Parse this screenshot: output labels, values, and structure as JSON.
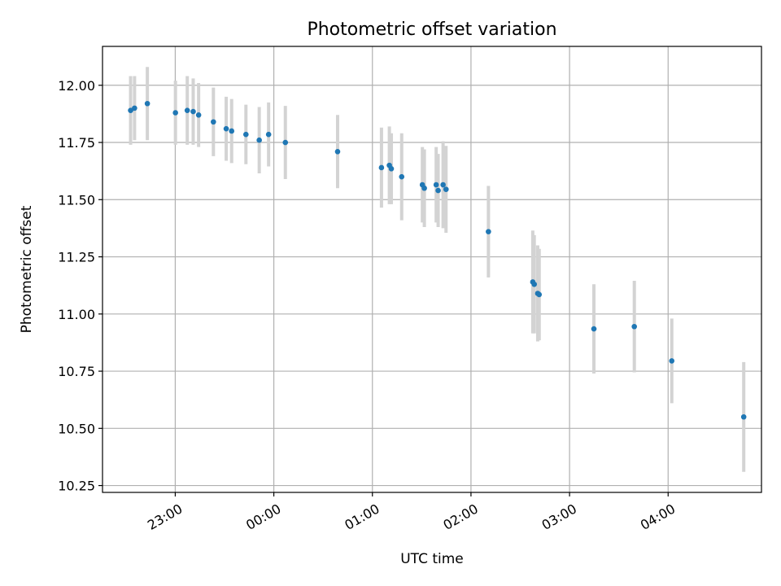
{
  "chart_data": {
    "type": "scatter",
    "title": "Photometric offset variation",
    "xlabel": "UTC time",
    "ylabel": "Photometric offset",
    "x_unit": "hours after 22:00 UTC",
    "xlim": [
      0.045,
      6.73
    ],
    "ylim": [
      10.22,
      12.17
    ],
    "x_ticks": [
      {
        "value": 0.783,
        "label": "23:00"
      },
      {
        "value": 1.783,
        "label": "00:00"
      },
      {
        "value": 2.783,
        "label": "01:00"
      },
      {
        "value": 3.783,
        "label": "02:00"
      },
      {
        "value": 4.783,
        "label": "03:00"
      },
      {
        "value": 5.783,
        "label": "04:00"
      }
    ],
    "y_ticks": [
      {
        "value": 10.25,
        "label": "10.25"
      },
      {
        "value": 10.5,
        "label": "10.50"
      },
      {
        "value": 10.75,
        "label": "10.75"
      },
      {
        "value": 11.0,
        "label": "11.00"
      },
      {
        "value": 11.25,
        "label": "11.25"
      },
      {
        "value": 11.5,
        "label": "11.50"
      },
      {
        "value": 11.75,
        "label": "11.75"
      },
      {
        "value": 12.0,
        "label": "12.00"
      }
    ],
    "grid": true,
    "marker_color": "#1f77b4",
    "errorbar_color": "#d3d3d3",
    "points": [
      {
        "x": 0.33,
        "y": 11.89,
        "err": 0.15
      },
      {
        "x": 0.37,
        "y": 11.9,
        "err": 0.14
      },
      {
        "x": 0.5,
        "y": 11.92,
        "err": 0.16
      },
      {
        "x": 0.785,
        "y": 11.88,
        "err": 0.14
      },
      {
        "x": 0.905,
        "y": 11.89,
        "err": 0.15
      },
      {
        "x": 0.965,
        "y": 11.885,
        "err": 0.145
      },
      {
        "x": 1.02,
        "y": 11.87,
        "err": 0.14
      },
      {
        "x": 1.17,
        "y": 11.84,
        "err": 0.15
      },
      {
        "x": 1.3,
        "y": 11.81,
        "err": 0.14
      },
      {
        "x": 1.355,
        "y": 11.8,
        "err": 0.14
      },
      {
        "x": 1.5,
        "y": 11.785,
        "err": 0.13
      },
      {
        "x": 1.635,
        "y": 11.76,
        "err": 0.145
      },
      {
        "x": 1.73,
        "y": 11.785,
        "err": 0.14
      },
      {
        "x": 1.9,
        "y": 11.75,
        "err": 0.16
      },
      {
        "x": 2.43,
        "y": 11.71,
        "err": 0.16
      },
      {
        "x": 2.875,
        "y": 11.64,
        "err": 0.175
      },
      {
        "x": 2.955,
        "y": 11.65,
        "err": 0.17
      },
      {
        "x": 2.975,
        "y": 11.635,
        "err": 0.155
      },
      {
        "x": 3.08,
        "y": 11.6,
        "err": 0.19
      },
      {
        "x": 3.29,
        "y": 11.565,
        "err": 0.165
      },
      {
        "x": 3.31,
        "y": 11.55,
        "err": 0.17
      },
      {
        "x": 3.43,
        "y": 11.565,
        "err": 0.165
      },
      {
        "x": 3.45,
        "y": 11.54,
        "err": 0.16
      },
      {
        "x": 3.5,
        "y": 11.565,
        "err": 0.19
      },
      {
        "x": 3.53,
        "y": 11.545,
        "err": 0.19
      },
      {
        "x": 3.96,
        "y": 11.36,
        "err": 0.2
      },
      {
        "x": 4.41,
        "y": 11.14,
        "err": 0.225
      },
      {
        "x": 4.425,
        "y": 11.13,
        "err": 0.215
      },
      {
        "x": 4.46,
        "y": 11.09,
        "err": 0.21
      },
      {
        "x": 4.475,
        "y": 11.085,
        "err": 0.2
      },
      {
        "x": 5.03,
        "y": 10.935,
        "err": 0.195
      },
      {
        "x": 5.44,
        "y": 10.945,
        "err": 0.2
      },
      {
        "x": 5.82,
        "y": 10.795,
        "err": 0.185
      },
      {
        "x": 6.55,
        "y": 10.55,
        "err": 0.24
      }
    ]
  }
}
